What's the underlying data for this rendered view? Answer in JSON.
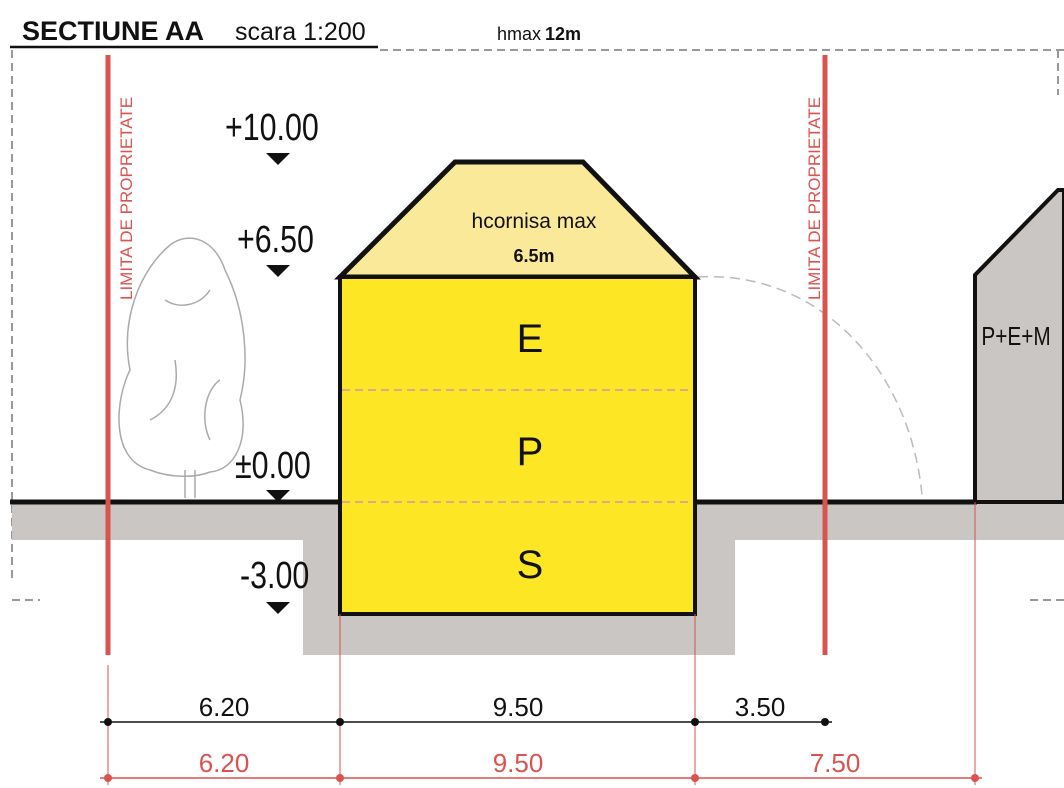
{
  "header": {
    "title": "SECTIUNE AA",
    "scale": "scara 1:200",
    "height_label": "hmax",
    "height_value": "12m"
  },
  "property_limits": [
    "LIMITA DE PROPRIETATE",
    "LIMITA DE PROPRIETATE"
  ],
  "levels": [
    "+10.00",
    "+6.50",
    "±0.00",
    "-3.00"
  ],
  "roof": {
    "label": "hcornisa max",
    "value": "6.5m"
  },
  "floors": [
    "E",
    "P",
    "S"
  ],
  "neighbor": "P+E+M",
  "dimensions": {
    "black": [
      "6.20",
      "9.50",
      "3.50"
    ],
    "red": [
      "6.20",
      "9.50",
      "7.50"
    ]
  }
}
